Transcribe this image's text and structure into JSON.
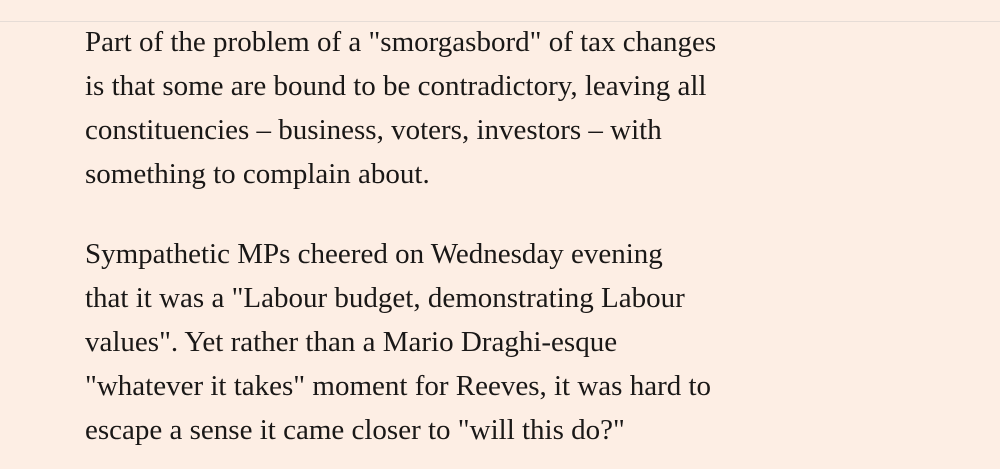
{
  "article": {
    "paragraphs": [
      {
        "lines": [
          "Part of the problem of a \"smorgasbord\" of tax changes",
          "is that some are bound to be contradictory, leaving all",
          "constituencies – business, voters, investors – with",
          "something to complain about."
        ]
      },
      {
        "lines": [
          "Sympathetic MPs cheered on Wednesday evening",
          "that it was a \"Labour budget, demonstrating Labour",
          "values\". Yet rather than a Mario Draghi-esque",
          "\"whatever it takes\" moment for Reeves, it was hard to",
          "escape a sense it came closer to \"will this do?\""
        ]
      }
    ]
  },
  "theme": {
    "background": "#FDEEE4",
    "text": "#1A1817",
    "divider": "#E6DCD6"
  }
}
